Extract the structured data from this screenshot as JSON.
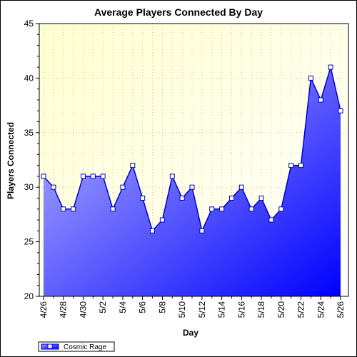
{
  "chart_data": {
    "type": "area",
    "title": "Average Players Connected By Day",
    "xlabel": "Day",
    "ylabel": "Players Connected",
    "ylim": [
      20,
      45
    ],
    "yticks": [
      20,
      25,
      30,
      35,
      40,
      45
    ],
    "x": [
      "4/26",
      "4/27",
      "4/28",
      "4/29",
      "4/30",
      "5/1",
      "5/2",
      "5/3",
      "5/4",
      "5/5",
      "5/6",
      "5/7",
      "5/8",
      "5/9",
      "5/10",
      "5/11",
      "5/12",
      "5/13",
      "5/14",
      "5/15",
      "5/16",
      "5/17",
      "5/18",
      "5/19",
      "5/20",
      "5/21",
      "5/22",
      "5/23",
      "5/24",
      "5/25",
      "5/26"
    ],
    "xtick_labels": [
      "4/26",
      "4/28",
      "4/30",
      "5/2",
      "5/4",
      "5/6",
      "5/8",
      "5/10",
      "5/12",
      "5/14",
      "5/16",
      "5/18",
      "5/20",
      "5/22",
      "5/24",
      "5/26"
    ],
    "series": [
      {
        "name": "Cosmic Rage",
        "values": [
          31,
          30,
          28,
          28,
          31,
          31,
          31,
          28,
          30,
          32,
          29,
          26,
          27,
          31,
          29,
          30,
          26,
          28,
          28,
          29,
          30,
          28,
          29,
          27,
          28,
          32,
          32,
          40,
          38,
          41,
          37
        ]
      }
    ],
    "grid": true,
    "legend_position": "bottom-left",
    "colors": {
      "plot_background": "#ffffe0",
      "line": "#0000cc",
      "fill_top": "#c8c8ff",
      "fill_bottom": "#0000ff",
      "marker_fill": "#ffffff"
    }
  }
}
